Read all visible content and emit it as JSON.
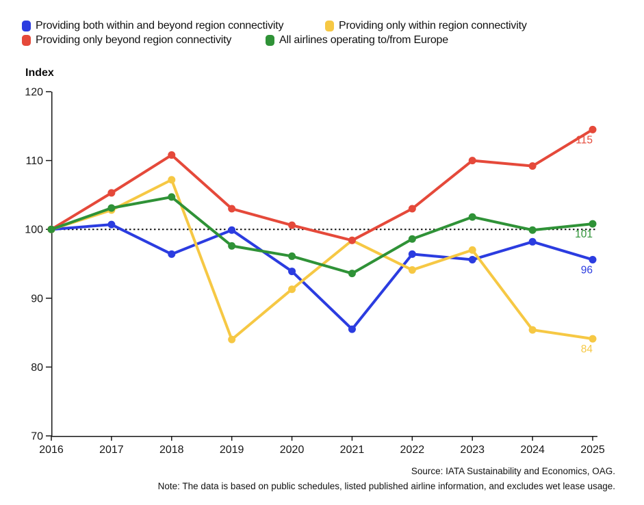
{
  "chart_data": {
    "type": "line",
    "title": "",
    "y_axis_title": "Index",
    "xlabel": "",
    "x": [
      2016,
      2017,
      2018,
      2019,
      2020,
      2021,
      2022,
      2023,
      2024,
      2025
    ],
    "ylim": [
      70,
      120
    ],
    "yticks": [
      120,
      110,
      100,
      90,
      80,
      70
    ],
    "reference_line": 100,
    "grid": false,
    "legend_position": "top-left",
    "series": [
      {
        "name": "Providing both within and beyond region connectivity",
        "color": "#2b3ce0",
        "values": [
          100,
          100.7,
          96.4,
          99.9,
          93.9,
          85.5,
          96.4,
          95.6,
          98.2,
          95.6
        ],
        "end_label": "96"
      },
      {
        "name": "Providing only within region connectivity",
        "color": "#f6c844",
        "values": [
          100,
          102.8,
          107.2,
          84,
          91.3,
          98.4,
          94.1,
          97,
          85.4,
          84.1
        ],
        "end_label": "84"
      },
      {
        "name": "Providing only beyond region connectivity",
        "color": "#e5493a",
        "values": [
          100,
          105.3,
          110.8,
          103,
          100.6,
          98.4,
          103,
          110,
          109.2,
          114.5
        ],
        "end_label": "115"
      },
      {
        "name": "All airlines operating to/from Europe",
        "color": "#2f9237",
        "values": [
          100,
          103.1,
          104.7,
          97.6,
          96.1,
          93.6,
          98.6,
          101.8,
          99.9,
          100.8
        ],
        "end_label": "101"
      }
    ]
  },
  "footer": {
    "source": "Source: IATA Sustainability and Economics, OAG.",
    "note": "Note: The data is based on public schedules, listed published airline information, and excludes wet lease usage."
  }
}
